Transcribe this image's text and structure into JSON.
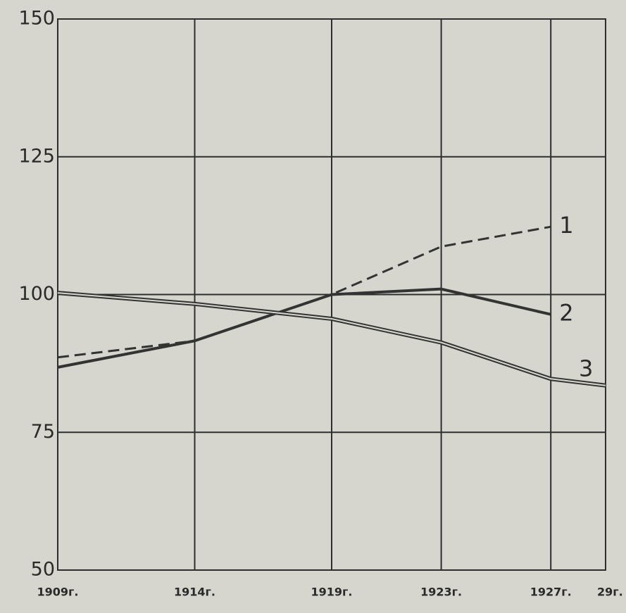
{
  "chart_data": {
    "type": "line",
    "x": [
      1909,
      1914,
      1919,
      1923,
      1927,
      1929
    ],
    "xlim": [
      1909,
      1929
    ],
    "xticks": [
      {
        "value": 1909,
        "label": "1909г."
      },
      {
        "value": 1914,
        "label": "1914г."
      },
      {
        "value": 1919,
        "label": "1919г."
      },
      {
        "value": 1923,
        "label": "1923г."
      },
      {
        "value": 1927,
        "label": "1927г."
      },
      {
        "value": 1929,
        "label": "29г."
      }
    ],
    "ylim": [
      50,
      150
    ],
    "yticks": [
      50,
      75,
      100,
      125,
      150
    ],
    "grid": true,
    "series": [
      {
        "name": "1",
        "color": "#333333",
        "style": "dashed",
        "values": [
          88.6,
          91.6,
          100,
          108.7,
          112.3,
          null
        ]
      },
      {
        "name": "2",
        "color": "#333333",
        "style": "solid",
        "values": [
          86.8,
          91.6,
          100,
          101,
          96.4,
          null
        ]
      },
      {
        "name": "3",
        "color": "#333333",
        "style": "double",
        "values": [
          100.3,
          98.3,
          95.6,
          91.3,
          84.7,
          83.5
        ]
      }
    ]
  }
}
